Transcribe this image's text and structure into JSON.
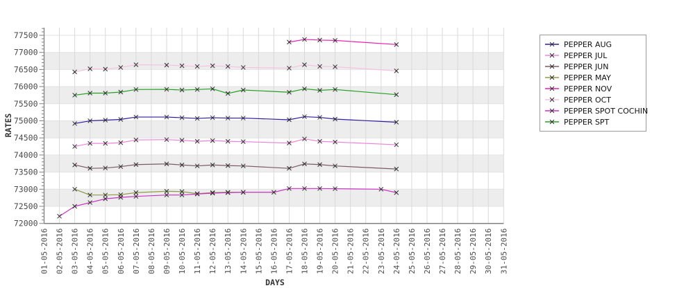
{
  "chart_data": {
    "type": "line",
    "title": "",
    "xlabel": "DAYS",
    "ylabel": "RATES",
    "ylim": [
      72000,
      77500
    ],
    "ytick_step": 500,
    "y_ticks": [
      72000,
      72500,
      73000,
      73500,
      74000,
      74500,
      75000,
      75500,
      76000,
      76500,
      77000,
      77500
    ],
    "x_tick_labels": [
      "01-05-2016",
      "02-05-2016",
      "03-05-2016",
      "04-05-2016",
      "05-05-2016",
      "06-05-2016",
      "07-05-2016",
      "08-05-2016",
      "09-05-2016",
      "10-05-2016",
      "11-05-2016",
      "12-05-2016",
      "13-05-2016",
      "14-05-2016",
      "15-05-2016",
      "16-05-2016",
      "17-05-2016",
      "18-05-2016",
      "19-05-2016",
      "20-05-2016",
      "21-05-2016",
      "22-05-2016",
      "23-05-2016",
      "24-05-2016",
      "25-05-2016",
      "26-05-2016",
      "27-05-2016",
      "28-05-2016",
      "29-05-2016",
      "30-05-2016",
      "31-05-2016"
    ],
    "grid": true,
    "marker": "x",
    "marker_color": "#2b2b2b",
    "legend_position": "outside-right-top",
    "colors": {
      "stripe": "#ededed",
      "grid": "#d9d9d9",
      "band_line": "#e2e2e2",
      "axis": "#808080",
      "tick_text": "#4a4a4a",
      "axis_title_text": "#333333"
    },
    "series": [
      {
        "name": "PEPPER AUG",
        "color": "#2c1a9e",
        "points": [
          [
            3,
            74920
          ],
          [
            4,
            75000
          ],
          [
            5,
            75020
          ],
          [
            6,
            75040
          ],
          [
            7,
            75110
          ],
          [
            9,
            75110
          ],
          [
            10,
            75090
          ],
          [
            11,
            75070
          ],
          [
            12,
            75090
          ],
          [
            13,
            75080
          ],
          [
            14,
            75080
          ],
          [
            17,
            75030
          ],
          [
            18,
            75120
          ],
          [
            19,
            75100
          ],
          [
            20,
            75050
          ],
          [
            24,
            74960
          ]
        ]
      },
      {
        "name": "PEPPER JUL",
        "color": "#ee82d9",
        "points": [
          [
            3,
            74250
          ],
          [
            4,
            74340
          ],
          [
            5,
            74340
          ],
          [
            6,
            74360
          ],
          [
            7,
            74440
          ],
          [
            9,
            74450
          ],
          [
            10,
            74430
          ],
          [
            11,
            74400
          ],
          [
            12,
            74420
          ],
          [
            13,
            74400
          ],
          [
            14,
            74390
          ],
          [
            17,
            74350
          ],
          [
            18,
            74470
          ],
          [
            19,
            74400
          ],
          [
            20,
            74380
          ],
          [
            24,
            74300
          ]
        ]
      },
      {
        "name": "PEPPER JUN",
        "color": "#7b5a64",
        "points": [
          [
            3,
            73710
          ],
          [
            4,
            73610
          ],
          [
            5,
            73620
          ],
          [
            6,
            73660
          ],
          [
            7,
            73720
          ],
          [
            9,
            73740
          ],
          [
            10,
            73710
          ],
          [
            11,
            73680
          ],
          [
            12,
            73710
          ],
          [
            13,
            73690
          ],
          [
            14,
            73680
          ],
          [
            17,
            73610
          ],
          [
            18,
            73740
          ],
          [
            19,
            73720
          ],
          [
            20,
            73680
          ],
          [
            24,
            73590
          ]
        ]
      },
      {
        "name": "PEPPER MAY",
        "color": "#8d9c45",
        "points": [
          [
            3,
            73000
          ],
          [
            4,
            72830
          ],
          [
            5,
            72830
          ],
          [
            6,
            72840
          ],
          [
            7,
            72900
          ],
          [
            9,
            72940
          ],
          [
            10,
            72930
          ],
          [
            11,
            72870
          ],
          [
            12,
            72900
          ],
          [
            13,
            72910
          ],
          [
            14,
            72910
          ]
        ]
      },
      {
        "name": "PEPPER NOV",
        "color": "#ea1cb4",
        "points": [
          [
            17,
            77300
          ],
          [
            18,
            77380
          ],
          [
            19,
            77360
          ],
          [
            20,
            77350
          ],
          [
            24,
            77230
          ]
        ]
      },
      {
        "name": "PEPPER OCT",
        "color": "#f5c2e0",
        "points": [
          [
            3,
            76430
          ],
          [
            4,
            76520
          ],
          [
            5,
            76510
          ],
          [
            6,
            76560
          ],
          [
            7,
            76640
          ],
          [
            9,
            76630
          ],
          [
            10,
            76610
          ],
          [
            11,
            76590
          ],
          [
            12,
            76610
          ],
          [
            13,
            76590
          ],
          [
            14,
            76560
          ],
          [
            17,
            76540
          ],
          [
            18,
            76640
          ],
          [
            19,
            76590
          ],
          [
            20,
            76580
          ],
          [
            24,
            76460
          ]
        ]
      },
      {
        "name": "PEPPER SPOT COCHIN",
        "color": "#cb2fc4",
        "points": [
          [
            2,
            72210
          ],
          [
            3,
            72500
          ],
          [
            4,
            72610
          ],
          [
            5,
            72720
          ],
          [
            6,
            72760
          ],
          [
            7,
            72790
          ],
          [
            9,
            72830
          ],
          [
            10,
            72830
          ],
          [
            11,
            72860
          ],
          [
            12,
            72885
          ],
          [
            13,
            72900
          ],
          [
            14,
            72910
          ],
          [
            16,
            72910
          ],
          [
            17,
            73020
          ],
          [
            18,
            73020
          ],
          [
            19,
            73020
          ],
          [
            20,
            73015
          ],
          [
            23,
            73000
          ],
          [
            24,
            72900
          ]
        ]
      },
      {
        "name": "PEPPER SPT",
        "color": "#249f24",
        "points": [
          [
            3,
            75750
          ],
          [
            4,
            75810
          ],
          [
            5,
            75810
          ],
          [
            6,
            75840
          ],
          [
            7,
            75915
          ],
          [
            9,
            75920
          ],
          [
            10,
            75900
          ],
          [
            11,
            75915
          ],
          [
            12,
            75935
          ],
          [
            13,
            75800
          ],
          [
            14,
            75900
          ],
          [
            17,
            75835
          ],
          [
            18,
            75935
          ],
          [
            19,
            75890
          ],
          [
            20,
            75915
          ],
          [
            24,
            75765
          ]
        ]
      }
    ]
  }
}
